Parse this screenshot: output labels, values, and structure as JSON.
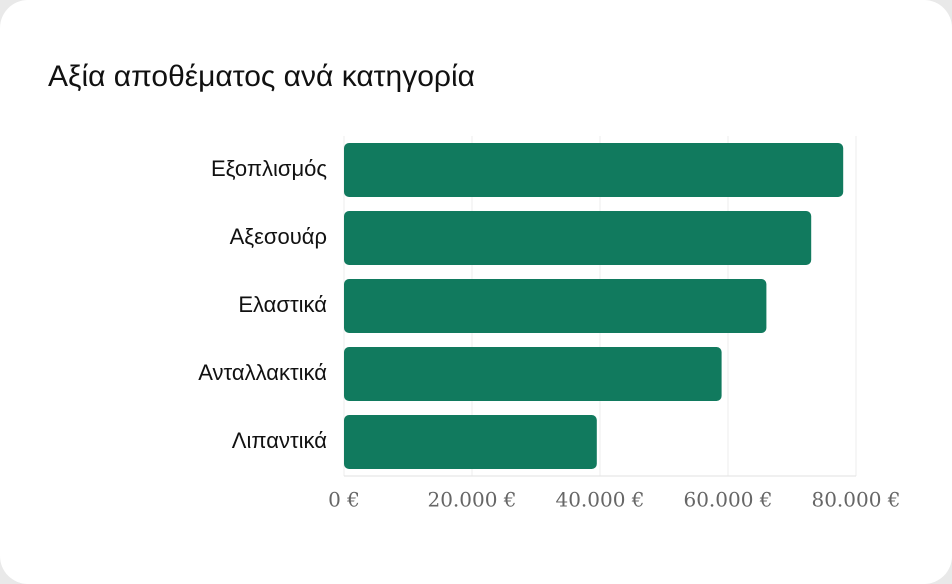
{
  "chart_data": {
    "type": "barh",
    "title": "Αξία αποθέματος ανά κατηγορία",
    "categories": [
      "Εξοπλισμός",
      "Αξεσουάρ",
      "Ελαστικά",
      "Ανταλλακτικά",
      "Λιπαντικά"
    ],
    "values": [
      78000,
      73000,
      66000,
      59000,
      39500
    ],
    "color": "#117a5e",
    "xlim": [
      0,
      80000
    ],
    "xticks": [
      {
        "value": 0,
        "label": "0 €"
      },
      {
        "value": 20000,
        "label": "20.000 €"
      },
      {
        "value": 40000,
        "label": "40.000 €"
      },
      {
        "value": 60000,
        "label": "60.000 €"
      },
      {
        "value": 80000,
        "label": "80.000 €"
      }
    ],
    "grid": true
  }
}
